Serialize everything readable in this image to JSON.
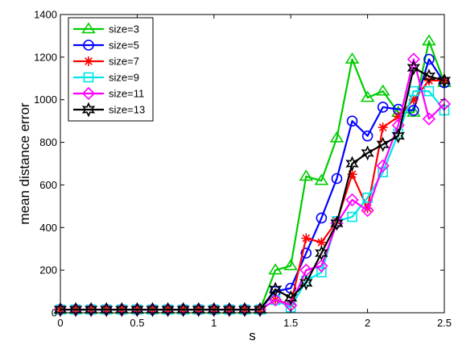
{
  "chart_data": {
    "type": "line",
    "xlabel": "s",
    "ylabel": "mean distance error",
    "xlim": [
      0,
      2.5
    ],
    "ylim": [
      0,
      1400
    ],
    "xticks": [
      "0",
      "0.5",
      "1",
      "1.5",
      "2",
      "2.5"
    ],
    "yticks": [
      "0",
      "200",
      "400",
      "600",
      "800",
      "1000",
      "1200",
      "1400"
    ],
    "xtick_values": [
      0,
      0.5,
      1,
      1.5,
      2,
      2.5
    ],
    "ytick_values": [
      0,
      200,
      400,
      600,
      800,
      1000,
      1200,
      1400
    ],
    "grid": false,
    "legend_position": "top-left",
    "x": [
      0,
      0.1,
      0.2,
      0.3,
      0.4,
      0.5,
      0.6,
      0.7,
      0.8,
      0.9,
      1.0,
      1.1,
      1.2,
      1.3,
      1.4,
      1.5,
      1.6,
      1.7,
      1.8,
      1.9,
      2.0,
      2.1,
      2.2,
      2.3,
      2.4,
      2.5
    ],
    "series": [
      {
        "name": "size=3",
        "color": "#00cc00",
        "marker": "triangle-up",
        "values": [
          15,
          15,
          15,
          15,
          15,
          15,
          15,
          15,
          15,
          15,
          15,
          15,
          15,
          15,
          200,
          220,
          640,
          620,
          820,
          1190,
          1010,
          1040,
          940,
          940,
          1275,
          1080
        ]
      },
      {
        "name": "size=5",
        "color": "#0000ff",
        "marker": "circle",
        "values": [
          15,
          15,
          15,
          15,
          15,
          15,
          15,
          15,
          15,
          15,
          15,
          15,
          15,
          15,
          100,
          115,
          280,
          445,
          630,
          900,
          830,
          965,
          955,
          950,
          1190,
          1080
        ]
      },
      {
        "name": "size=7",
        "color": "#ff0000",
        "marker": "asterisk",
        "values": [
          15,
          15,
          15,
          15,
          15,
          15,
          15,
          15,
          15,
          15,
          15,
          15,
          15,
          15,
          60,
          40,
          350,
          330,
          430,
          650,
          490,
          870,
          920,
          1000,
          1090,
          1090
        ]
      },
      {
        "name": "size=9",
        "color": "#00e5e5",
        "marker": "square",
        "values": [
          15,
          15,
          15,
          15,
          15,
          15,
          15,
          15,
          15,
          15,
          15,
          15,
          15,
          15,
          60,
          25,
          150,
          190,
          430,
          450,
          540,
          660,
          840,
          1040,
          1040,
          950
        ]
      },
      {
        "name": "size=11",
        "color": "#ff00ff",
        "marker": "diamond",
        "values": [
          15,
          15,
          15,
          15,
          15,
          15,
          15,
          15,
          15,
          15,
          15,
          15,
          15,
          15,
          60,
          35,
          200,
          220,
          420,
          530,
          480,
          690,
          880,
          1190,
          910,
          980
        ]
      },
      {
        "name": "size=13",
        "color": "#000000",
        "marker": "hexagram",
        "values": [
          15,
          15,
          15,
          15,
          15,
          15,
          15,
          15,
          15,
          15,
          15,
          15,
          15,
          15,
          110,
          70,
          140,
          280,
          420,
          700,
          750,
          790,
          830,
          1150,
          1110,
          1090
        ]
      }
    ]
  }
}
